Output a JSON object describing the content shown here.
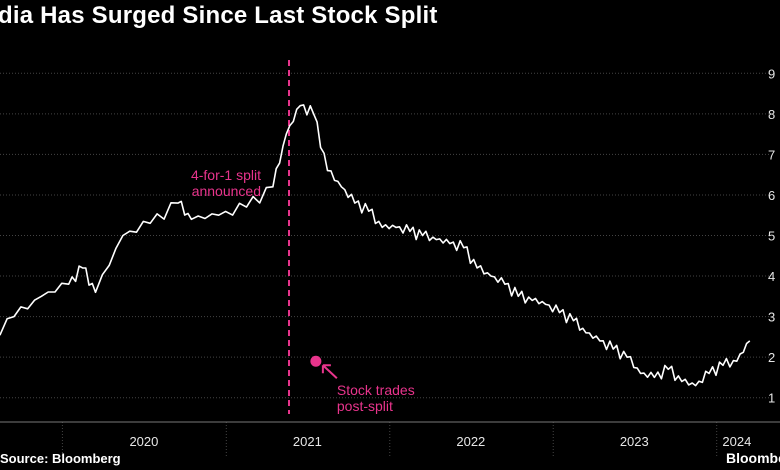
{
  "title": "dia Has Surged Since Last Stock Split",
  "source": "Source: Bloomberg",
  "brand": "Bloomberg",
  "colors": {
    "background": "#000000",
    "line": "#ffffff",
    "accent": "#e8348c",
    "grid": "#444444"
  },
  "chart_data": {
    "type": "line",
    "title": "dia Has Surged Since Last Stock Split",
    "xlabel": "",
    "ylabel": "",
    "x_ticks": [
      "2020",
      "2021",
      "2022",
      "2023",
      "2024"
    ],
    "y_ticks": [
      "1",
      "2",
      "3",
      "4",
      "5",
      "6",
      "7",
      "8",
      "9"
    ],
    "ylim": [
      0.5,
      9.5
    ],
    "xlim": [
      "2019-07-01",
      "2024-03-31"
    ],
    "grid": true,
    "series": [
      {
        "x": [
          "2019-07",
          "2019-09",
          "2019-11",
          "2020-01",
          "2020-02",
          "2020-03",
          "2020-05",
          "2020-07",
          "2020-09",
          "2020-10",
          "2020-12",
          "2021-02",
          "2021-04",
          "2021-05",
          "2021-06",
          "2021-07",
          "2021-08",
          "2021-09",
          "2021-10",
          "2021-11",
          "2021-12",
          "2022-01",
          "2022-02",
          "2022-03",
          "2022-04",
          "2022-05",
          "2022-06",
          "2022-07",
          "2022-08",
          "2022-09",
          "2022-10",
          "2022-11",
          "2022-12",
          "2023-01",
          "2023-02",
          "2023-03",
          "2023-04",
          "2023-05",
          "2023-06",
          "2023-07",
          "2023-08",
          "2023-09",
          "2023-10",
          "2023-11",
          "2023-12",
          "2024-01",
          "2024-02",
          "2024-03"
        ],
        "y": [
          2.4,
          3.0,
          3.5,
          3.8,
          4.2,
          3.6,
          5.0,
          5.3,
          5.8,
          5.4,
          5.5,
          5.7,
          6.2,
          7.5,
          8.2,
          8.0,
          6.6,
          6.2,
          5.8,
          5.6,
          5.2,
          5.2,
          5.1,
          5.0,
          4.9,
          4.8,
          4.7,
          4.2,
          4.0,
          3.8,
          3.5,
          3.4,
          3.3,
          3.1,
          2.9,
          2.6,
          2.4,
          2.2,
          2.0,
          1.6,
          1.5,
          1.7,
          1.4,
          1.3,
          1.6,
          1.8,
          1.9,
          2.4
        ]
      }
    ],
    "annotations": [
      {
        "text_lines": [
          "4-for-1 split",
          "announced"
        ],
        "x": "2021-05-21"
      },
      {
        "text_lines": [
          "Stock trades",
          "post-split"
        ],
        "x": "2021-07-20",
        "y": 1.9
      }
    ]
  }
}
